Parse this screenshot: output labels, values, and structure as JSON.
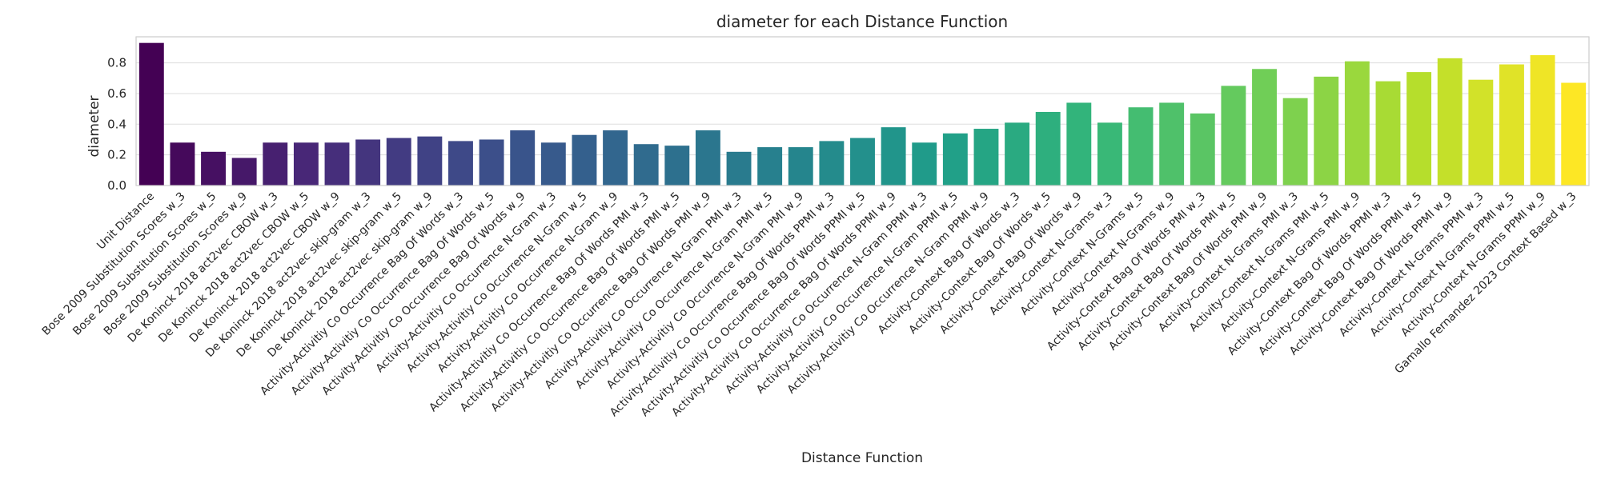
{
  "chart_data": {
    "type": "bar",
    "title": "diameter for each Distance Function",
    "xlabel": "Distance Function",
    "ylabel": "diameter",
    "ylim": [
      0,
      0.97
    ],
    "yticks": [
      "0.0",
      "0.2",
      "0.4",
      "0.6",
      "0.8"
    ],
    "ytick_values": [
      0.0,
      0.2,
      0.4,
      0.6,
      0.8
    ],
    "grid": true,
    "palette": "viridis",
    "categories": [
      "Unit Distance",
      "Bose 2009 Substitution Scores w_3",
      "Bose 2009 Substitution Scores w_5",
      "Bose 2009 Substitution Scores w_9",
      "De Koninck 2018 act2vec CBOW w_3",
      "De Koninck 2018 act2vec CBOW w_5",
      "De Koninck 2018 act2vec CBOW w_9",
      "De Koninck 2018 act2vec skip-gram w_3",
      "De Koninck 2018 act2vec skip-gram w_5",
      "De Koninck 2018 act2vec skip-gram w_9",
      "Activity-Activitiy Co Occurrence Bag Of Words w_3",
      "Activity-Activitiy Co Occurrence Bag Of Words w_5",
      "Activity-Activitiy Co Occurrence Bag Of Words w_9",
      "Activity-Activitiy Co Occurrence N-Gram w_3",
      "Activity-Activitiy Co Occurrence N-Gram w_5",
      "Activity-Activitiy Co Occurrence N-Gram w_9",
      "Activity-Activitiy Co Occurrence Bag Of Words PMI w_3",
      "Activity-Activitiy Co Occurrence Bag Of Words PMI w_5",
      "Activity-Activitiy Co Occurrence Bag Of Words PMI w_9",
      "Activity-Activitiy Co Occurrence N-Gram PMI w_3",
      "Activity-Activitiy Co Occurrence N-Gram PMI w_5",
      "Activity-Activitiy Co Occurrence N-Gram PMI w_9",
      "Activity-Activitiy Co Occurrence Bag Of Words PPMI w_3",
      "Activity-Activitiy Co Occurrence Bag Of Words PPMI w_5",
      "Activity-Activitiy Co Occurrence Bag Of Words PPMI w_9",
      "Activity-Activitiy Co Occurrence N-Gram PPMI w_3",
      "Activity-Activitiy Co Occurrence N-Gram PPMI w_5",
      "Activity-Activitiy Co Occurrence N-Gram PPMI w_9",
      "Activity-Context Bag Of Words w_3",
      "Activity-Context Bag Of Words w_5",
      "Activity-Context Bag Of Words w_9",
      "Activity-Context N-Grams w_3",
      "Activity-Context N-Grams w_5",
      "Activity-Context N-Grams w_9",
      "Activity-Context Bag Of Words PMI w_3",
      "Activity-Context Bag Of Words PMI w_5",
      "Activity-Context Bag Of Words PMI w_9",
      "Activity-Context N-Grams PMI w_3",
      "Activity-Context N-Grams PMI w_5",
      "Activity-Context N-Grams PMI w_9",
      "Activity-Context Bag Of Words PPMI w_3",
      "Activity-Context Bag Of Words PPMI w_5",
      "Activity-Context Bag Of Words PPMI w_9",
      "Activity-Context N-Grams PPMI w_3",
      "Activity-Context N-Grams PPMI w_5",
      "Activity-Context N-Grams PPMI w_9",
      "Gamallo Fernandez 2023 Context Based w_3"
    ],
    "values": [
      0.93,
      0.28,
      0.22,
      0.18,
      0.28,
      0.28,
      0.28,
      0.3,
      0.31,
      0.32,
      0.29,
      0.3,
      0.36,
      0.28,
      0.33,
      0.36,
      0.27,
      0.26,
      0.36,
      0.22,
      0.25,
      0.25,
      0.29,
      0.31,
      0.38,
      0.28,
      0.34,
      0.37,
      0.41,
      0.48,
      0.54,
      0.41,
      0.51,
      0.54,
      0.47,
      0.65,
      0.76,
      0.57,
      0.71,
      0.81,
      0.68,
      0.74,
      0.83,
      0.69,
      0.79,
      0.85,
      0.67
    ],
    "colors": {
      "grid": "#dddddd",
      "axes_edge": "#cccccc",
      "text": "#262626"
    }
  }
}
